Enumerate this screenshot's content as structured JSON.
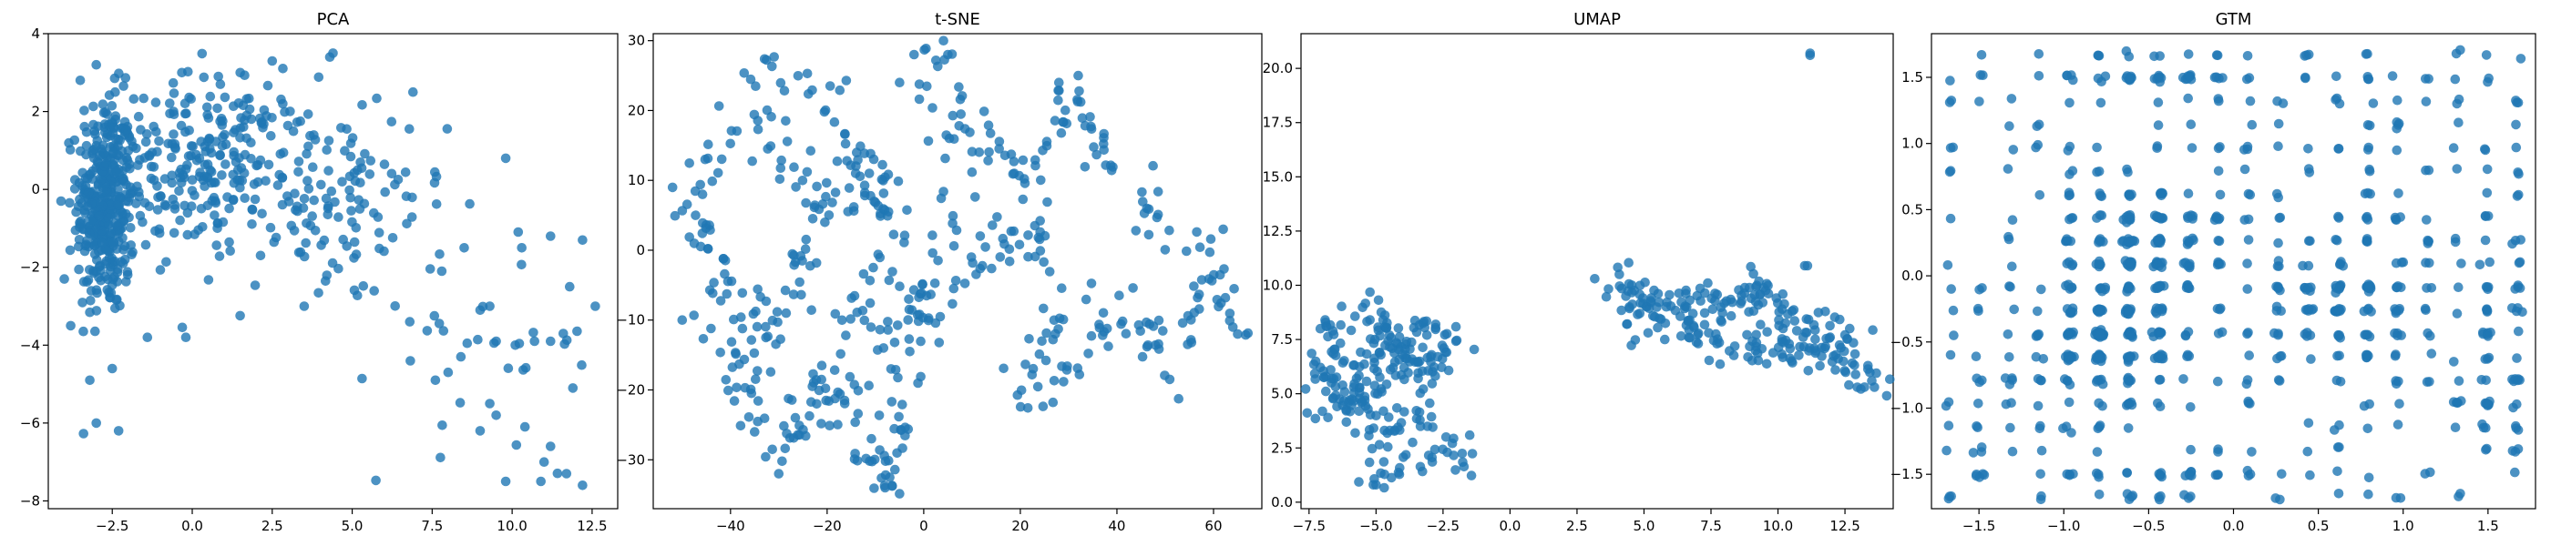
{
  "colors": {
    "points": "#1f77b4"
  },
  "chart_data": [
    {
      "type": "scatter",
      "title": "PCA",
      "xlim": [
        -4.5,
        13.3
      ],
      "ylim": [
        -8.2,
        4.0
      ],
      "xticks": [
        -2.5,
        0.0,
        2.5,
        5.0,
        7.5,
        10.0,
        12.5
      ],
      "xtick_labels": [
        "−2.5",
        "0.0",
        "2.5",
        "5.0",
        "7.5",
        "10.0",
        "12.5"
      ],
      "yticks": [
        -8,
        -6,
        -4,
        -2,
        0,
        2,
        4
      ],
      "ytick_labels": [
        "−8",
        "−6",
        "−4",
        "−2",
        "0",
        "2",
        "4"
      ],
      "clusters": [
        {
          "cx": -2.7,
          "cy": -0.4,
          "sx": 0.45,
          "sy": 1.4,
          "n": 380
        },
        {
          "cx": 0.5,
          "cy": 0.7,
          "sx": 1.6,
          "sy": 1.1,
          "n": 260
        },
        {
          "cx": 4.5,
          "cy": -0.5,
          "sx": 1.7,
          "sy": 1.3,
          "n": 110
        },
        {
          "cx": 9.5,
          "cy": -4.0,
          "sx": 1.8,
          "sy": 1.8,
          "n": 30
        }
      ],
      "points": [
        [
          -3.0,
          3.2
        ],
        [
          -3.5,
          2.8
        ],
        [
          -3.0,
          -6.0
        ],
        [
          -2.3,
          -6.2
        ],
        [
          -3.2,
          -4.9
        ],
        [
          -2.5,
          -4.6
        ],
        [
          4.3,
          3.4
        ],
        [
          4.4,
          3.5
        ],
        [
          2.5,
          3.3
        ],
        [
          1.5,
          3.0
        ],
        [
          6.9,
          2.5
        ],
        [
          9.8,
          0.8
        ],
        [
          10.3,
          -1.5
        ],
        [
          11.2,
          -1.2
        ],
        [
          12.2,
          -1.3
        ],
        [
          12.6,
          -3.0
        ],
        [
          11.8,
          -2.5
        ],
        [
          9.3,
          -3.0
        ],
        [
          9.0,
          -3.1
        ],
        [
          9.5,
          -3.9
        ],
        [
          8.4,
          -4.3
        ],
        [
          7.6,
          -4.9
        ],
        [
          8.0,
          -4.7
        ],
        [
          10.1,
          -4.0
        ],
        [
          10.7,
          -3.9
        ],
        [
          11.2,
          -3.9
        ],
        [
          11.6,
          -3.7
        ],
        [
          11.9,
          -5.1
        ],
        [
          9.3,
          -5.5
        ],
        [
          9.5,
          -5.8
        ],
        [
          9.0,
          -6.2
        ],
        [
          10.4,
          -6.1
        ],
        [
          11.2,
          -6.6
        ],
        [
          9.8,
          -7.5
        ],
        [
          10.9,
          -7.5
        ],
        [
          11.7,
          -7.3
        ],
        [
          12.2,
          -7.6
        ],
        [
          11.0,
          -7.0
        ],
        [
          -4.1,
          -0.3
        ],
        [
          -4.0,
          -2.3
        ],
        [
          -3.8,
          -3.5
        ],
        [
          -1.4,
          -3.8
        ],
        [
          -0.2,
          -3.8
        ],
        [
          3.5,
          -3.0
        ],
        [
          6.8,
          -3.4
        ],
        [
          8.5,
          -1.5
        ],
        [
          7.8,
          -2.1
        ]
      ]
    },
    {
      "type": "scatter",
      "title": "t-SNE",
      "xlim": [
        -56,
        70
      ],
      "ylim": [
        -37,
        31
      ],
      "xticks": [
        -40,
        -20,
        0,
        20,
        40,
        60
      ],
      "xtick_labels": [
        "−40",
        "−20",
        "0",
        "20",
        "40",
        "60"
      ],
      "yticks": [
        -30,
        -20,
        -10,
        0,
        10,
        20,
        30
      ],
      "ytick_labels": [
        "−30",
        "−20",
        "−10",
        "0",
        "10",
        "20",
        "30"
      ],
      "paths": [
        {
          "pts": [
            [
              -35,
              25
            ],
            [
              -28,
              22
            ],
            [
              -22,
              24
            ],
            [
              -15,
              18
            ],
            [
              -12,
              10
            ],
            [
              -18,
              5
            ],
            [
              -25,
              8
            ],
            [
              -30,
              15
            ],
            [
              -38,
              18
            ],
            [
              -45,
              12
            ],
            [
              -48,
              5
            ],
            [
              -42,
              -2
            ]
          ],
          "n": 90,
          "jit": 2.0
        },
        {
          "pts": [
            [
              -42,
              -2
            ],
            [
              -35,
              -8
            ],
            [
              -30,
              -15
            ],
            [
              -38,
              -20
            ],
            [
              -32,
              -25
            ],
            [
              -25,
              -25
            ],
            [
              -20,
              -18
            ],
            [
              -15,
              -10
            ],
            [
              -10,
              -4
            ],
            [
              -5,
              2
            ],
            [
              -10,
              8
            ],
            [
              -5,
              12
            ]
          ],
          "n": 90,
          "jit": 2.0
        },
        {
          "pts": [
            [
              -20,
              -18
            ],
            [
              -15,
              -25
            ],
            [
              -10,
              -30
            ],
            [
              -7,
              -33
            ],
            [
              -4,
              -26
            ],
            [
              -6,
              -20
            ],
            [
              -1,
              -15
            ],
            [
              0,
              -8
            ],
            [
              5,
              -5
            ],
            [
              10,
              -2
            ],
            [
              15,
              0
            ],
            [
              20,
              5
            ]
          ],
          "n": 80,
          "jit": 1.8
        },
        {
          "pts": [
            [
              -3,
              23
            ],
            [
              3,
              28
            ],
            [
              8,
              24
            ],
            [
              12,
              16
            ],
            [
              18,
              12
            ],
            [
              22,
              8
            ],
            [
              25,
              14
            ],
            [
              30,
              22
            ],
            [
              35,
              18
            ],
            [
              38,
              10
            ],
            [
              45,
              8
            ],
            [
              50,
              3
            ],
            [
              55,
              0
            ],
            [
              60,
              -5
            ],
            [
              65,
              -10
            ]
          ],
          "n": 100,
          "jit": 2.0
        },
        {
          "pts": [
            [
              20,
              5
            ],
            [
              25,
              -2
            ],
            [
              30,
              -8
            ],
            [
              25,
              -15
            ],
            [
              20,
              -20
            ],
            [
              28,
              -18
            ],
            [
              35,
              -12
            ],
            [
              40,
              -6
            ],
            [
              45,
              -12
            ],
            [
              52,
              -15
            ],
            [
              58,
              -10
            ],
            [
              62,
              -8
            ]
          ],
          "n": 90,
          "jit": 2.0
        },
        {
          "pts": [
            [
              0,
              20
            ],
            [
              5,
              15
            ],
            [
              10,
              8
            ],
            [
              5,
              2
            ],
            [
              0,
              -2
            ],
            [
              -5,
              -12
            ],
            [
              -10,
              -15
            ],
            [
              -20,
              -22
            ],
            [
              -28,
              -28
            ],
            [
              -30,
              -25
            ]
          ],
          "n": 60,
          "jit": 2.2
        },
        {
          "pts": [
            [
              -50,
              10
            ],
            [
              -46,
              4
            ],
            [
              -44,
              -6
            ],
            [
              -40,
              -14
            ],
            [
              -35,
              -12
            ],
            [
              -28,
              -6
            ],
            [
              -25,
              0
            ],
            [
              -20,
              2
            ]
          ],
          "n": 50,
          "jit": 2.2
        }
      ],
      "points": [
        [
          -8,
          -34
        ],
        [
          -30,
          -32
        ],
        [
          -50,
          -10
        ],
        [
          -52,
          9
        ],
        [
          -5,
          24
        ],
        [
          -2,
          28
        ],
        [
          5,
          28
        ],
        [
          28,
          24
        ],
        [
          32,
          25
        ],
        [
          65,
          -12
        ],
        [
          64,
          -11
        ],
        [
          62,
          3
        ],
        [
          -35,
          -26
        ]
      ]
    },
    {
      "type": "scatter",
      "title": "UMAP",
      "xlim": [
        -7.8,
        14.3
      ],
      "ylim": [
        -0.3,
        21.6
      ],
      "xticks": [
        -7.5,
        -5.0,
        -2.5,
        0.0,
        2.5,
        5.0,
        7.5,
        10.0,
        12.5
      ],
      "xtick_labels": [
        "−7.5",
        "−5.0",
        "−2.5",
        "0.0",
        "2.5",
        "5.0",
        "7.5",
        "10.0",
        "12.5"
      ],
      "yticks": [
        0.0,
        2.5,
        5.0,
        7.5,
        10.0,
        12.5,
        15.0,
        17.5,
        20.0
      ],
      "ytick_labels": [
        "0.0",
        "2.5",
        "5.0",
        "7.5",
        "10.0",
        "12.5",
        "15.0",
        "17.5",
        "20.0"
      ],
      "paths": [
        {
          "pts": [
            [
              -6.8,
              8.2
            ],
            [
              -6.5,
              7.0
            ],
            [
              -6.8,
              5.5
            ],
            [
              -6.0,
              4.2
            ],
            [
              -5.2,
              5.8
            ],
            [
              -4.5,
              7.8
            ],
            [
              -3.8,
              6.5
            ],
            [
              -3.0,
              5.8
            ],
            [
              -2.5,
              7.5
            ],
            [
              -3.2,
              8.2
            ]
          ],
          "n": 150,
          "jit": 0.5
        },
        {
          "pts": [
            [
              -5.5,
              9.0
            ],
            [
              -4.8,
              8.2
            ],
            [
              -3.5,
              7.2
            ],
            [
              -4.5,
              6.0
            ],
            [
              -5.5,
              4.5
            ],
            [
              -4.8,
              3.2
            ],
            [
              -3.8,
              3.8
            ],
            [
              -2.8,
              3.2
            ],
            [
              -2.0,
              2.5
            ],
            [
              -1.8,
              2.0
            ]
          ],
          "n": 90,
          "jit": 0.45
        },
        {
          "pts": [
            [
              -5.2,
              2.6
            ],
            [
              -5.0,
              1.6
            ],
            [
              -4.8,
              0.9
            ],
            [
              -4.0,
              1.5
            ],
            [
              -3.0,
              2.0
            ]
          ],
          "n": 18,
          "jit": 0.3
        },
        {
          "pts": [
            [
              4.2,
              10.5
            ],
            [
              4.5,
              9.2
            ],
            [
              5.5,
              9.5
            ],
            [
              6.5,
              9.0
            ],
            [
              7.5,
              9.6
            ],
            [
              8.5,
              9.2
            ],
            [
              9.5,
              9.8
            ],
            [
              10.0,
              9.0
            ],
            [
              11.0,
              8.5
            ],
            [
              12.0,
              8.0
            ],
            [
              12.8,
              7.2
            ]
          ],
          "n": 130,
          "jit": 0.45
        },
        {
          "pts": [
            [
              4.0,
              8.0
            ],
            [
              5.0,
              8.3
            ],
            [
              6.5,
              8.1
            ],
            [
              7.5,
              7.5
            ],
            [
              8.5,
              7.0
            ],
            [
              9.5,
              7.2
            ],
            [
              10.5,
              7.4
            ],
            [
              11.5,
              7.0
            ],
            [
              12.5,
              6.5
            ],
            [
              13.5,
              5.4
            ]
          ],
          "n": 110,
          "jit": 0.45
        }
      ],
      "points": [
        [
          11.2,
          20.7
        ],
        [
          11.2,
          20.6
        ],
        [
          11.0,
          10.9
        ],
        [
          11.1,
          10.9
        ],
        [
          -5.0,
          0.8
        ],
        [
          -5.1,
          0.8
        ],
        [
          13.6,
          5.3
        ],
        [
          -6.9,
          8.4
        ]
      ]
    },
    {
      "type": "scatter",
      "title": "GTM",
      "xlim": [
        -1.78,
        1.78
      ],
      "ylim": [
        -1.76,
        1.83
      ],
      "xticks": [
        -1.5,
        -1.0,
        -0.5,
        0.0,
        0.5,
        1.0,
        1.5
      ],
      "xtick_labels": [
        "−1.5",
        "−1.0",
        "−0.5",
        "0.0",
        "0.5",
        "1.0",
        "1.5"
      ],
      "yticks": [
        -1.5,
        -1.0,
        -0.5,
        0.0,
        0.5,
        1.0,
        1.5
      ],
      "ytick_labels": [
        "−1.5",
        "−1.0",
        "−0.5",
        "0.0",
        "0.5",
        "1.0",
        "1.5"
      ],
      "grid_nodes": 20,
      "grid_range": [
        -1.67,
        1.67
      ],
      "clusters": [
        {
          "cx": -0.5,
          "cy": 0.25,
          "sx": 0.22,
          "sy": 0.25,
          "n": 140
        },
        {
          "cx": -0.75,
          "cy": -0.5,
          "sx": 0.22,
          "sy": 0.25,
          "n": 170
        },
        {
          "cx": 0.7,
          "cy": -0.2,
          "sx": 0.25,
          "sy": 0.25,
          "n": 100
        },
        {
          "cx": -0.5,
          "cy": 1.55,
          "sx": 0.3,
          "sy": 0.08,
          "n": 40
        },
        {
          "cx": -0.5,
          "cy": -1.6,
          "sx": 0.3,
          "sy": 0.08,
          "n": 30
        },
        {
          "cx": 1.55,
          "cy": -0.5,
          "sx": 0.06,
          "sy": 0.6,
          "n": 40
        }
      ],
      "uniform_n": 380
    }
  ]
}
